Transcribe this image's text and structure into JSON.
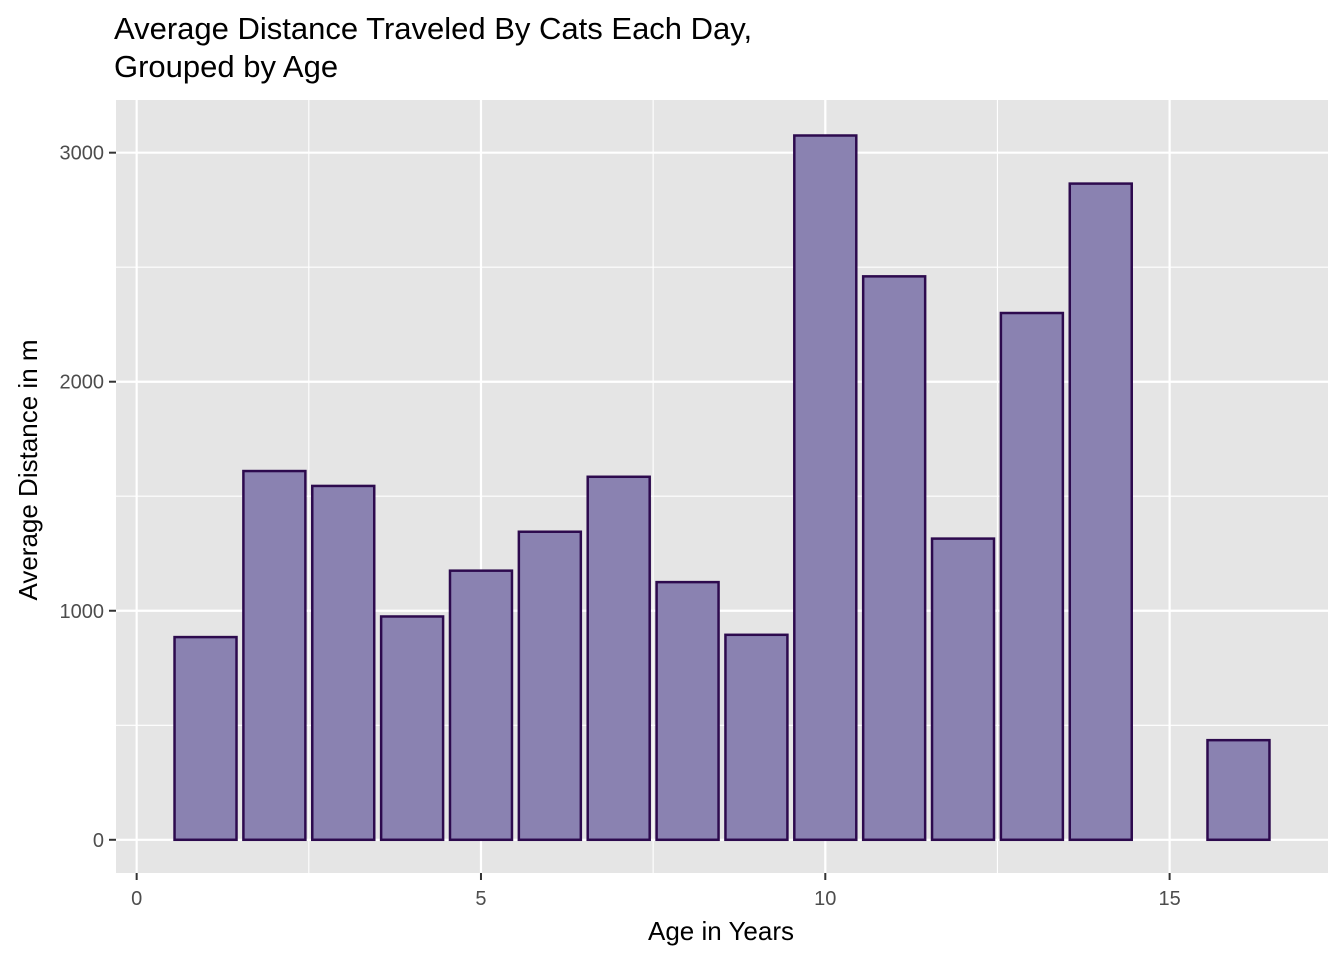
{
  "chart_data": {
    "type": "bar",
    "title_lines": [
      "Average Distance Traveled By Cats Each Day,",
      "Grouped by Age"
    ],
    "xlabel": "Age in Years",
    "ylabel": "Average Distance in m",
    "x": [
      1,
      2,
      3,
      4,
      5,
      6,
      7,
      8,
      9,
      10,
      11,
      12,
      13,
      14,
      16
    ],
    "values": [
      885,
      1610,
      1545,
      975,
      1175,
      1345,
      1585,
      1125,
      895,
      3075,
      2460,
      1315,
      2300,
      2865,
      435
    ],
    "xlim": [
      -0.3,
      17.3
    ],
    "ylim": [
      -145,
      3230
    ],
    "xticks": [
      0,
      5,
      10,
      15
    ],
    "yticks": [
      0,
      1000,
      2000,
      3000
    ],
    "bar_width": 0.9,
    "grid": true,
    "colors": {
      "panel_background": "#e5e5e5",
      "grid_major": "#ffffff",
      "bar_fill": "#8a82b1",
      "bar_outline": "#2d0a4e",
      "tick_mark": "#333333"
    }
  }
}
